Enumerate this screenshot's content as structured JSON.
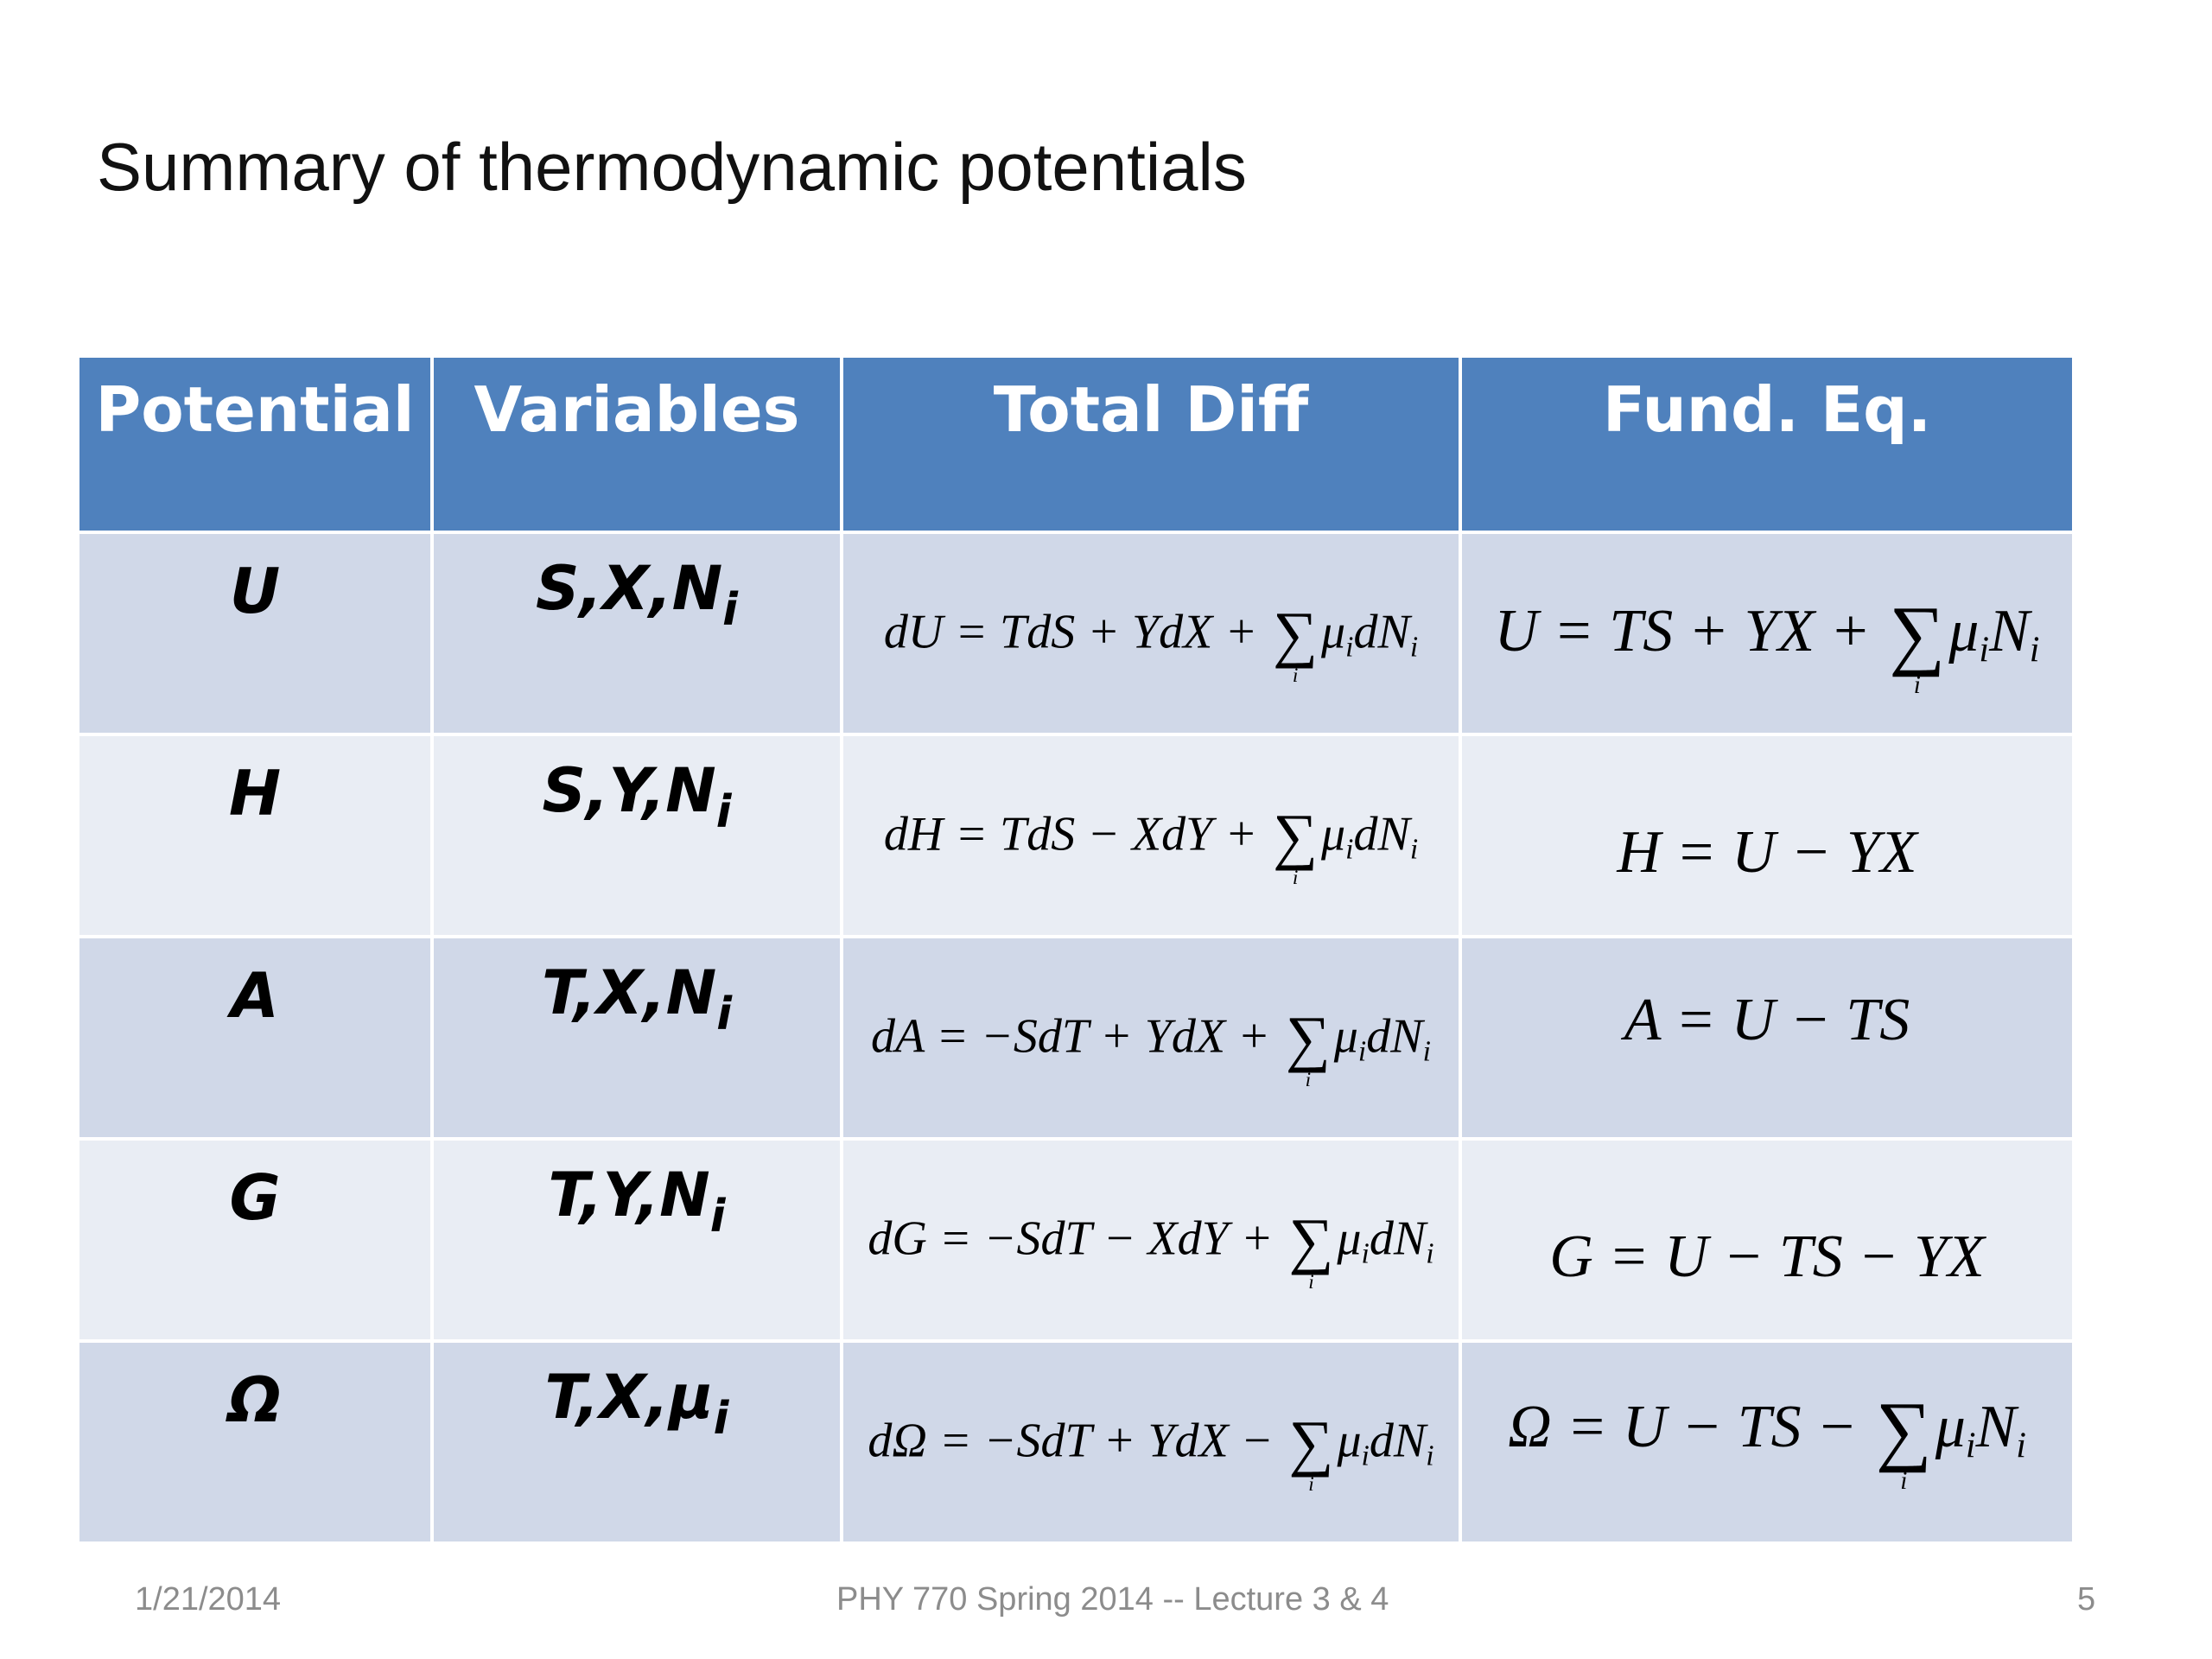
{
  "title": "Summary of thermodynamic potentials",
  "table": {
    "headers": [
      "Potential",
      "Variables",
      "Total Diff",
      "Fund. Eq."
    ],
    "rows": [
      {
        "potential": "U",
        "variables": {
          "main": "S,X,N",
          "sub": "i"
        },
        "total_diff": "dU = TdS + YdX + ∑ᵢ μᵢdNᵢ",
        "fund_eq": "U = TS + YX + ∑ᵢ μᵢNᵢ"
      },
      {
        "potential": "H",
        "variables": {
          "main": "S,Y,N",
          "sub": "i"
        },
        "total_diff": "dH = TdS − XdY + ∑ᵢ μᵢdNᵢ",
        "fund_eq": "H = U − YX"
      },
      {
        "potential": "A",
        "variables": {
          "main": "T,X,N",
          "sub": "i"
        },
        "total_diff": "dA = −SdT + YdX + ∑ᵢ μᵢdNᵢ",
        "fund_eq": "A = U − TS"
      },
      {
        "potential": "G",
        "variables": {
          "main": "T,Y,N",
          "sub": "i"
        },
        "total_diff": "dG = −SdT − XdY + ∑ᵢ μᵢdNᵢ",
        "fund_eq": "G = U − TS − YX"
      },
      {
        "potential": "Ω",
        "variables": {
          "main": "T,X,μ",
          "sub": "i"
        },
        "total_diff": "dΩ = −SdT + YdX − ∑ᵢ μᵢdNᵢ",
        "fund_eq": "Ω = U − TS − ∑ᵢ μᵢNᵢ"
      }
    ]
  },
  "eq_parts": {
    "r0_diff_a": "dU = TdS + YdX + ",
    "r0_fund_a": "U = TS + YX + ",
    "r1_diff_a": "dH = TdS − XdY + ",
    "r2_diff_a": "dA = −SdT + YdX + ",
    "r3_diff_a": "dG = −SdT − XdY + ",
    "r4_diff_a": "dΩ = −SdT + YdX − ",
    "r4_fund_a": "Ω = U − TS − ",
    "sum_symbol": "∑",
    "sum_index": "i",
    "mu": "μ",
    "dN": "dN",
    "N": "N"
  },
  "footer": {
    "date": "1/21/2014",
    "course": "PHY 770  Spring 2014 -- Lecture 3 & 4",
    "page": "5"
  },
  "colors": {
    "header_bg": "#4f81bd",
    "row_odd_bg": "#d0d8e8",
    "row_even_bg": "#e9edf4",
    "footer_text": "#8c8c8c"
  }
}
